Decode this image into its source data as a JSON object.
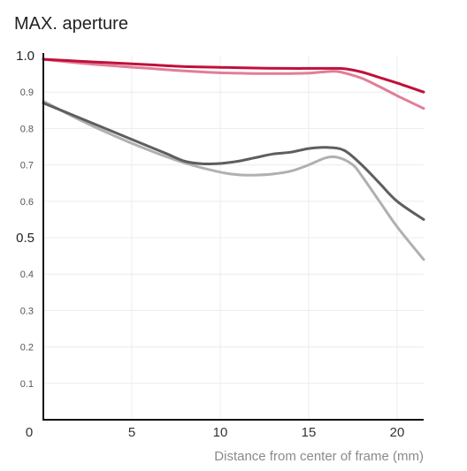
{
  "chart_data": {
    "type": "line",
    "title": "MAX. aperture",
    "xlabel": "Distance from center of frame (mm)",
    "ylabel": "",
    "xlim": [
      0,
      21.5
    ],
    "ylim": [
      0,
      1.0
    ],
    "x_ticks": [
      "0",
      "5",
      "10",
      "15",
      "20"
    ],
    "x_tick_values": [
      0,
      5,
      10,
      15,
      20
    ],
    "y_ticks": [
      "0.1",
      "0.2",
      "0.3",
      "0.4",
      "0.5",
      "0.6",
      "0.7",
      "0.8",
      "0.9",
      "1.0"
    ],
    "y_tick_values": [
      0.1,
      0.2,
      0.3,
      0.4,
      0.5,
      0.6,
      0.7,
      0.8,
      0.9,
      1.0
    ],
    "major_y_ticks": [
      "0.5",
      "1.0"
    ],
    "grid": true,
    "legend": "none",
    "series": [
      {
        "color": "#c0103a",
        "x": [
          0,
          2,
          4,
          6,
          8,
          10,
          12,
          14,
          15,
          16,
          17,
          18,
          19,
          20,
          21.5
        ],
        "y": [
          0.99,
          0.985,
          0.98,
          0.975,
          0.97,
          0.968,
          0.966,
          0.965,
          0.965,
          0.965,
          0.964,
          0.955,
          0.94,
          0.925,
          0.9
        ]
      },
      {
        "color": "#e27d97",
        "x": [
          0,
          2,
          4,
          6,
          8,
          10,
          12,
          14,
          15,
          16,
          16.5,
          17,
          18,
          19,
          20,
          21.5
        ],
        "y": [
          0.99,
          0.98,
          0.972,
          0.965,
          0.958,
          0.953,
          0.951,
          0.951,
          0.952,
          0.956,
          0.957,
          0.953,
          0.938,
          0.915,
          0.89,
          0.855
        ]
      },
      {
        "color": "#5e5e5e",
        "x": [
          0,
          2,
          4,
          6,
          7,
          8,
          9,
          10,
          11,
          12,
          13,
          14,
          15,
          16,
          17,
          18,
          19,
          20,
          21.5
        ],
        "y": [
          0.87,
          0.83,
          0.79,
          0.75,
          0.73,
          0.71,
          0.703,
          0.704,
          0.71,
          0.72,
          0.73,
          0.735,
          0.745,
          0.748,
          0.74,
          0.7,
          0.65,
          0.6,
          0.55
        ]
      },
      {
        "color": "#b0b0b0",
        "x": [
          0,
          2,
          4,
          6,
          8,
          10,
          11,
          12,
          13,
          14,
          15,
          16,
          16.7,
          17.5,
          18,
          19,
          20,
          21.5
        ],
        "y": [
          0.875,
          0.825,
          0.78,
          0.74,
          0.705,
          0.68,
          0.673,
          0.672,
          0.675,
          0.683,
          0.7,
          0.72,
          0.72,
          0.7,
          0.67,
          0.6,
          0.53,
          0.44
        ]
      }
    ]
  }
}
